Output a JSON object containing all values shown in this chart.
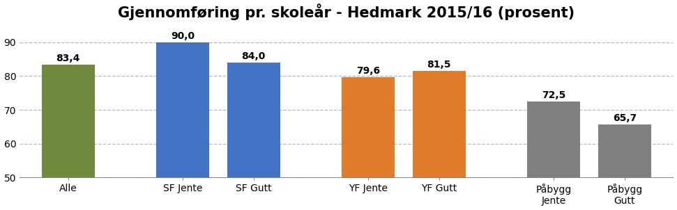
{
  "title": "Gjennomføring pr. skoleår - Hedmark 2015/16 (prosent)",
  "categories": [
    "Alle",
    "SF Jente",
    "SF Gutt",
    "YF Jente",
    "YF Gutt",
    "Påbygg\nJente",
    "Påbygg\nGutt"
  ],
  "values": [
    83.4,
    90.0,
    84.0,
    79.6,
    81.5,
    72.5,
    65.7
  ],
  "bar_colors": [
    "#6e8b3d",
    "#4472c4",
    "#4472c4",
    "#e07b2a",
    "#e07b2a",
    "#7f7f7f",
    "#7f7f7f"
  ],
  "ylim": [
    50,
    95
  ],
  "yticks": [
    50,
    60,
    70,
    80,
    90
  ],
  "background_color": "#ffffff",
  "grid_color": "#b0b8c8",
  "title_fontsize": 15,
  "label_fontsize": 10,
  "value_fontsize": 10,
  "bar_width": 0.6,
  "positions": [
    0,
    1.3,
    2.1,
    3.4,
    4.2,
    5.5,
    6.3
  ]
}
